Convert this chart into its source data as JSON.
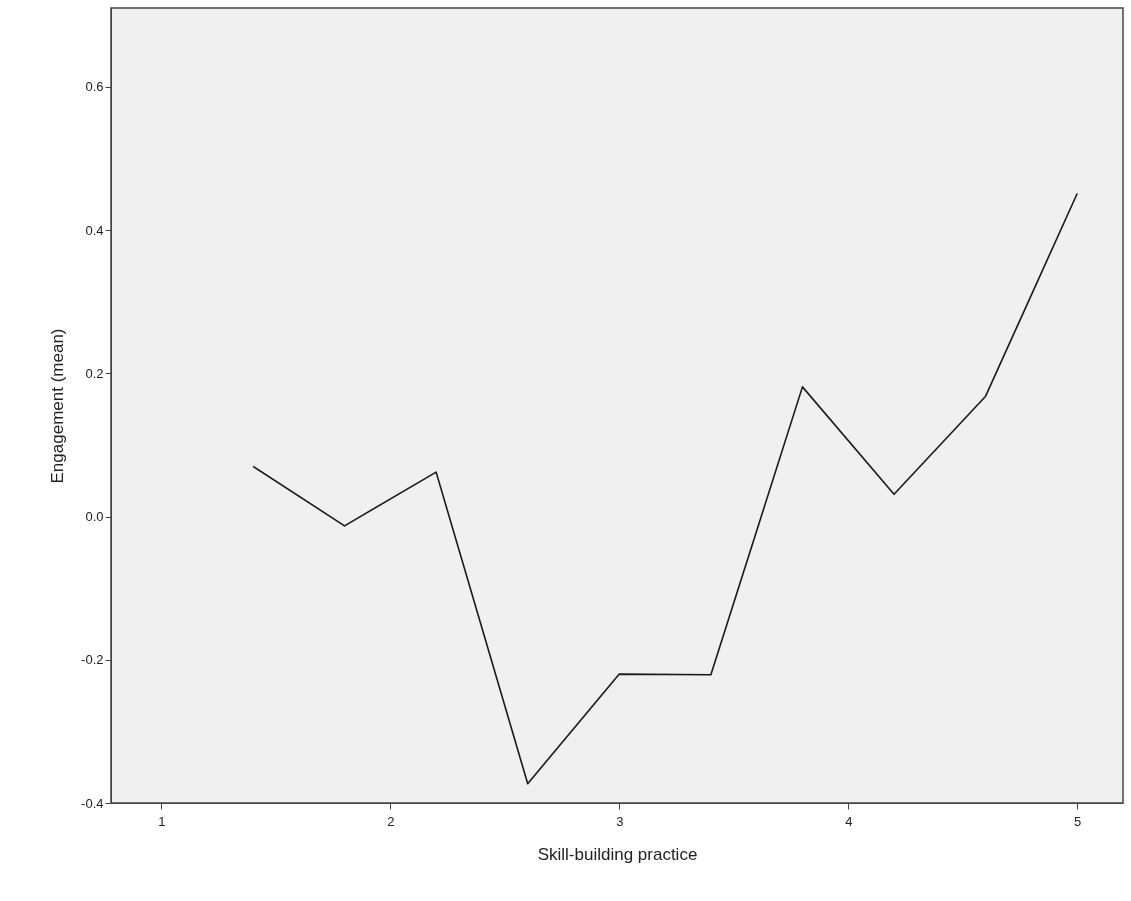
{
  "chart_data": {
    "type": "line",
    "xlabel": "Skill-building practice",
    "ylabel": "Engagement (mean)",
    "x": [
      1.4,
      1.8,
      2.2,
      2.6,
      3.0,
      3.4,
      3.8,
      4.2,
      4.6,
      5.0
    ],
    "series": [
      {
        "color": "#1a1a1a",
        "values": [
          0.07,
          -0.013,
          0.062,
          -0.373,
          -0.22,
          -0.221,
          0.181,
          0.031,
          0.168,
          0.451
        ]
      }
    ],
    "xlim": [
      0.78,
      5.2
    ],
    "xticks": [
      1,
      2,
      3,
      4,
      5
    ],
    "ylim": [
      -0.4,
      0.71
    ],
    "yticks": [
      -0.4,
      -0.2,
      {
        "value": 0,
        "label": "0.0"
      },
      0.2,
      0.4,
      0.6
    ],
    "grid": false,
    "marker": "none",
    "line_style": "solid"
  }
}
